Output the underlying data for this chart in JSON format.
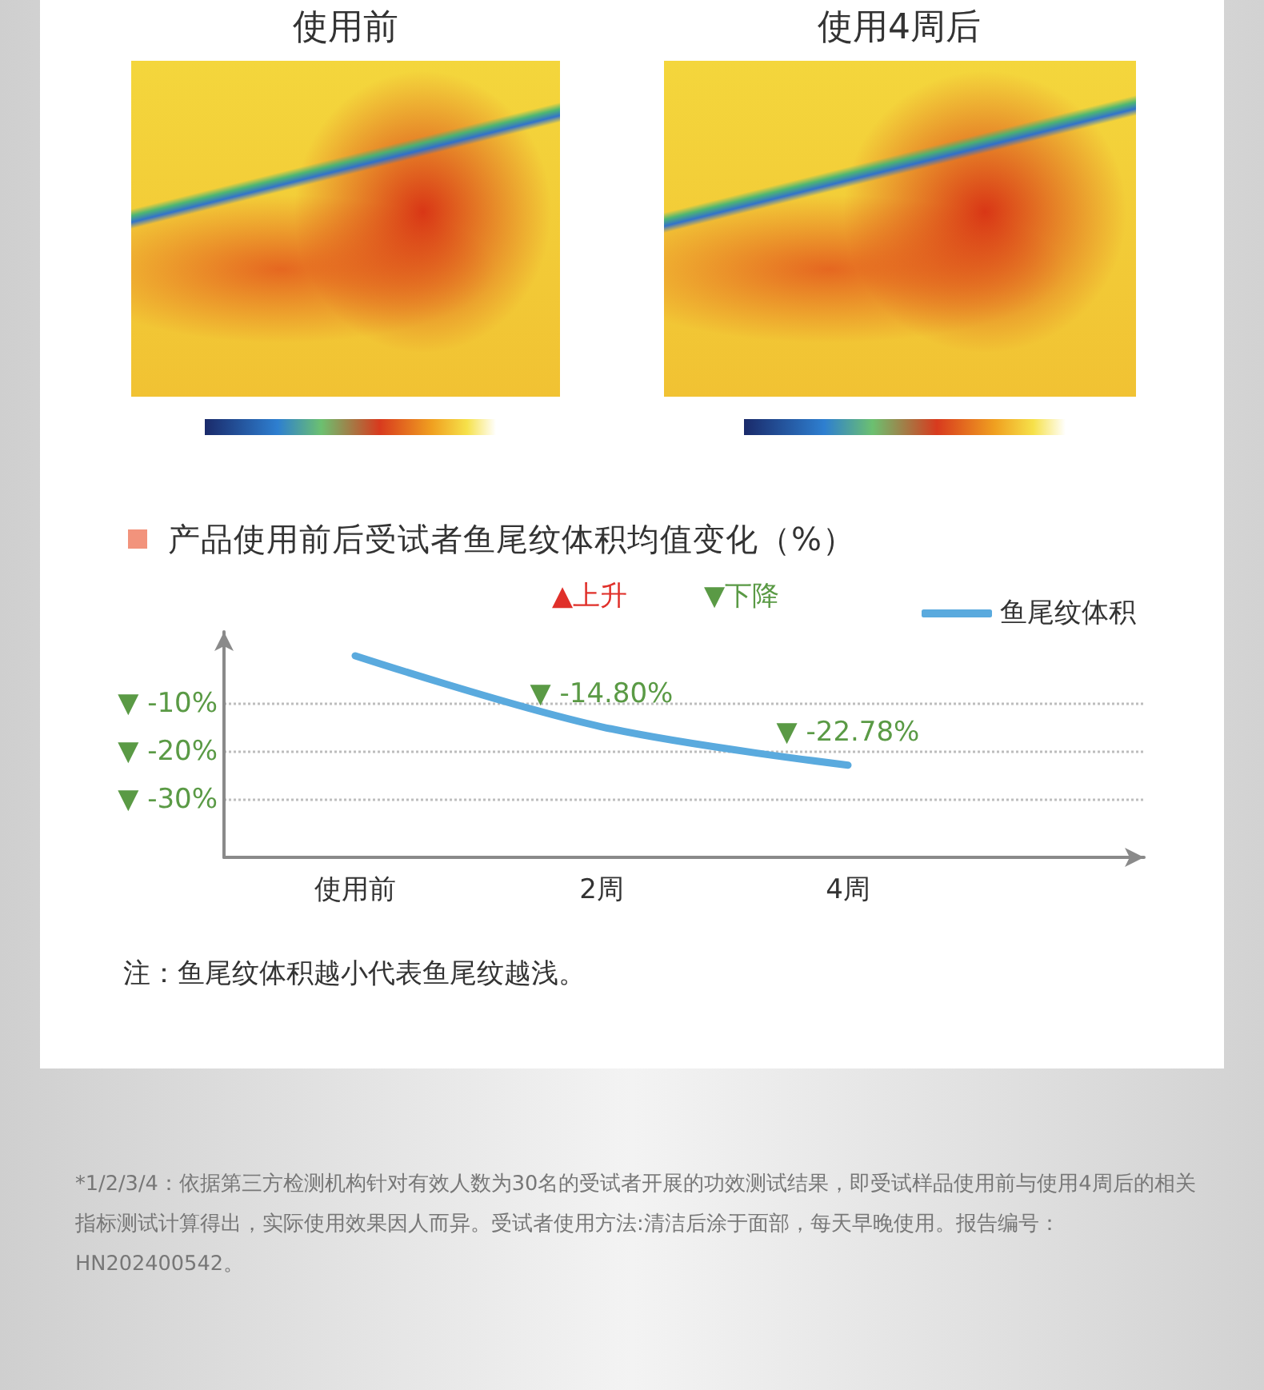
{
  "chart_data": {
    "type": "line",
    "title": "产品使用前后受试者鱼尾纹体积均值变化（%）",
    "categories": [
      "使用前",
      "2周",
      "4周"
    ],
    "series": [
      {
        "name": "鱼尾纹体积",
        "color": "#5aaade",
        "values": [
          0,
          -14.8,
          -22.78
        ],
        "value_labels": [
          null,
          "▼ -14.80%",
          "▼ -22.78%"
        ]
      }
    ],
    "ylim": [
      -42,
      5
    ],
    "yticks": [
      {
        "value": -10,
        "label": "▼ -10%"
      },
      {
        "value": -20,
        "label": "▼ -20%"
      },
      {
        "value": -30,
        "label": "▼ -30%"
      }
    ],
    "grid": "y",
    "legend": "top right",
    "marker": "none",
    "line_style": "solid",
    "annotations": [
      "使用前",
      "使用4周后",
      "▲上升",
      "▼下降",
      "注：鱼尾纹体积越小代表鱼尾纹越浅。",
      "*1/2/3/4：依据第三方检测机构针对有效人数为30名的受试者开展的功效测试结果，即受试样品使用前与使用4周后的相关指标测试计算得出，实际使用效果因人而异。受试者使用方法:清洁后涂于面部，每天早晚使用。报告编号：HN202400542。"
    ]
  }
}
